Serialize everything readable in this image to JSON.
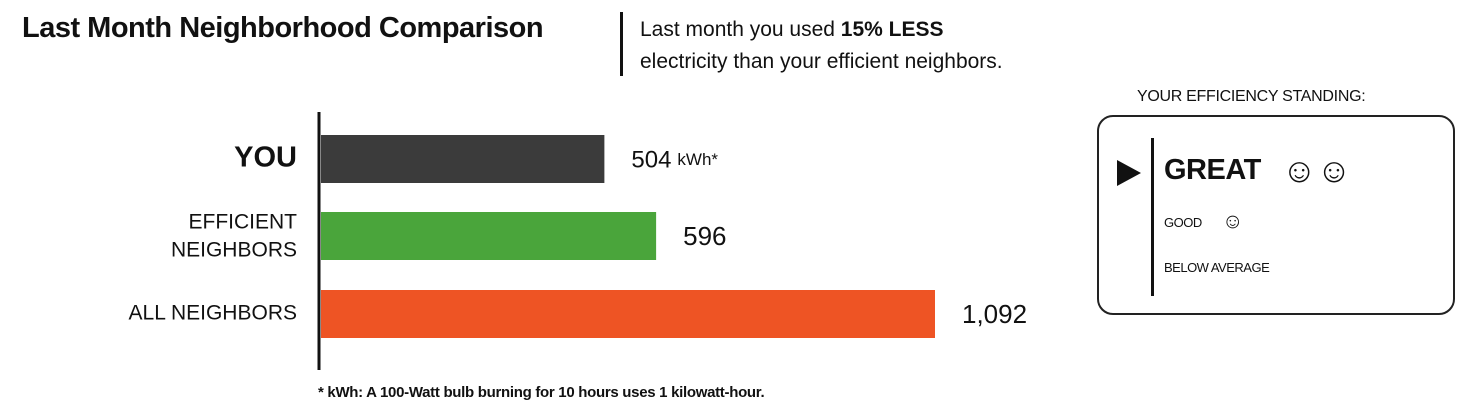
{
  "header": {
    "title": "Last Month Neighborhood Comparison",
    "summary_pre": "Last month you used ",
    "summary_bold": "15% LESS",
    "summary_line2": "electricity than your efficient neighbors."
  },
  "chart_data": {
    "type": "bar",
    "orientation": "horizontal",
    "unit": "kWh*",
    "categories": [
      "YOU",
      "EFFICIENT NEIGHBORS",
      "ALL NEIGHBORS"
    ],
    "values": [
      504,
      596,
      1092
    ],
    "value_labels": [
      "504",
      "596",
      "1,092"
    ],
    "colors": [
      "#3b3b3b",
      "#4aa53b",
      "#ee5424"
    ],
    "grid": false,
    "legend": "none"
  },
  "footnote": "* kWh: A 100-Watt bulb burning for 10 hours uses 1 kilowatt-hour.",
  "standing": {
    "title": "YOUR EFFICIENCY STANDING:",
    "current": "GREAT",
    "levels": [
      {
        "label": "GREAT",
        "faces": "☺☺"
      },
      {
        "label": "GOOD",
        "faces": "☺"
      },
      {
        "label": "BELOW AVERAGE",
        "faces": ""
      }
    ]
  }
}
